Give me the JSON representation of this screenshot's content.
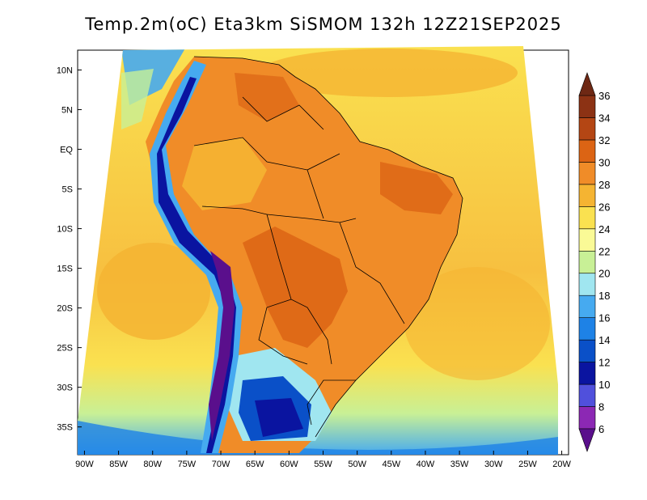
{
  "title": "Temp.2m(oC) Eta3km SiSMOM 132h 12Z21SEP2025",
  "map": {
    "lat_labels": [
      "10N",
      "5N",
      "EQ",
      "5S",
      "10S",
      "15S",
      "20S",
      "25S",
      "30S",
      "35S"
    ],
    "lon_labels": [
      "90W",
      "85W",
      "80W",
      "75W",
      "70W",
      "65W",
      "60W",
      "55W",
      "50W",
      "45W",
      "40W",
      "35W",
      "30W",
      "25W",
      "20W"
    ],
    "lon_range": [
      -91,
      -19
    ],
    "lat_range": [
      -38.5,
      12.5
    ]
  },
  "colorbar": {
    "labels": [
      "6",
      "8",
      "10",
      "12",
      "14",
      "16",
      "18",
      "20",
      "22",
      "24",
      "26",
      "28",
      "30",
      "32",
      "34",
      "36"
    ],
    "colors": [
      "#5a0f8c",
      "#8c28b4",
      "#5050dc",
      "#0a14a0",
      "#0a50c8",
      "#1e82e6",
      "#46aaf0",
      "#a0e6f0",
      "#c8f096",
      "#fafa96",
      "#fae150",
      "#f5b432",
      "#f08c28",
      "#dc6414",
      "#b44614",
      "#8c3214",
      "#6e2814"
    ]
  }
}
